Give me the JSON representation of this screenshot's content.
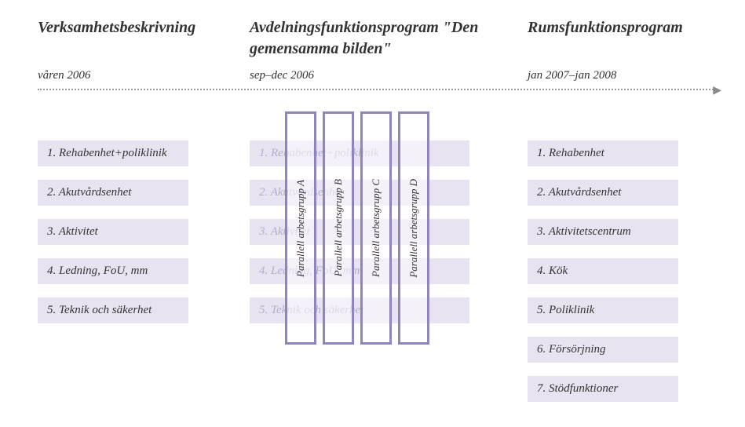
{
  "columns": [
    {
      "heading": "Verksamhetsbeskrivning",
      "date": "våren 2006",
      "items": [
        "1. Rehabenhet+poliklinik",
        "2. Akutvårdsenhet",
        "3. Aktivitet",
        "4. Ledning, FoU, mm",
        "5. Teknik och säkerhet"
      ]
    },
    {
      "heading": "Avdelningsfunktionsprogram \"Den gemensamma bilden\"",
      "date": "sep–dec 2006",
      "items": [
        "1. Rehabenhet+poliklinik",
        "2. Akutvårdsenhet",
        "3. Aktivitet",
        "4. Ledning, FoU, mm",
        "5. Teknik och säkerhet"
      ]
    },
    {
      "heading": "Rumsfunktionsprogram",
      "date": "jan 2007–jan 2008",
      "items": [
        "1. Rehabenhet",
        "2. Akutvårdsenhet",
        "3. Aktivitetscentrum",
        "4. Kök",
        "5. Poliklinik",
        "6. Försörjning",
        "7. Stödfunktioner"
      ]
    }
  ],
  "verticals": [
    "Parallell arbetsgrupp A",
    "Parallell arbetsgrupp B",
    "Parallell arbetsgrupp C",
    "Parallell arbetsgrupp D"
  ],
  "colors": {
    "item_bg": "#e7e3f0",
    "vertical_border": "#8f84bb",
    "faded_text": "#b3aecb"
  }
}
